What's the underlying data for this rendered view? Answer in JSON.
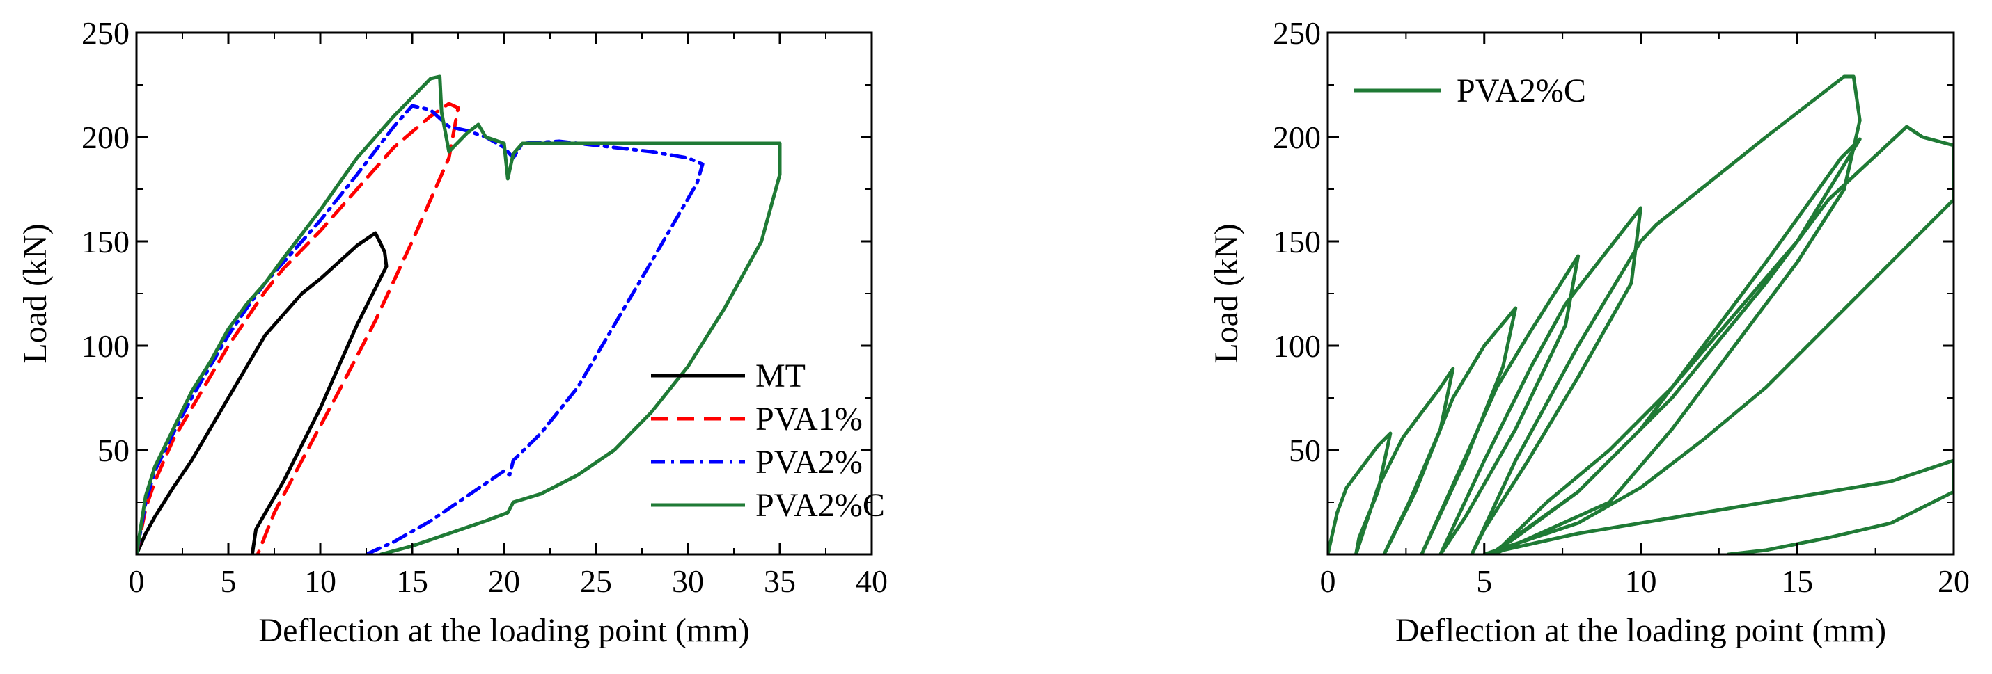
{
  "chart_data": [
    {
      "type": "line",
      "xlabel": "Deflection at the loading point (mm)",
      "ylabel": "Load (kN)",
      "xlim": [
        0,
        40
      ],
      "ylim": [
        0,
        250
      ],
      "x_ticks": [
        0,
        5,
        10,
        15,
        20,
        25,
        30,
        35,
        40
      ],
      "y_ticks": [
        50,
        100,
        150,
        200,
        250
      ],
      "legend_position": "bottom-right",
      "series": [
        {
          "name": "MT",
          "color": "#000000",
          "dash": "solid",
          "points": [
            [
              0,
              0
            ],
            [
              0.5,
              10
            ],
            [
              1,
              18
            ],
            [
              1.5,
              25
            ],
            [
              2,
              32
            ],
            [
              3,
              45
            ],
            [
              4,
              60
            ],
            [
              5,
              75
            ],
            [
              6,
              90
            ],
            [
              7,
              105
            ],
            [
              8,
              115
            ],
            [
              9,
              125
            ],
            [
              10,
              132
            ],
            [
              11,
              140
            ],
            [
              12,
              148
            ],
            [
              13,
              154
            ],
            [
              13.5,
              145
            ],
            [
              13.6,
              138
            ],
            [
              12,
              110
            ],
            [
              10,
              70
            ],
            [
              8,
              35
            ],
            [
              6.5,
              12
            ],
            [
              6.3,
              0
            ]
          ]
        },
        {
          "name": "PVA1%",
          "color": "#ff0000",
          "dash": "dashed",
          "points": [
            [
              0,
              0
            ],
            [
              0.5,
              22
            ],
            [
              1,
              35
            ],
            [
              2,
              55
            ],
            [
              3,
              70
            ],
            [
              4,
              85
            ],
            [
              5,
              100
            ],
            [
              6,
              113
            ],
            [
              7,
              126
            ],
            [
              8,
              137
            ],
            [
              10,
              155
            ],
            [
              12,
              175
            ],
            [
              14,
              195
            ],
            [
              16,
              210
            ],
            [
              17,
              216
            ],
            [
              17.5,
              214
            ],
            [
              17,
              190
            ],
            [
              15,
              150
            ],
            [
              13,
              112
            ],
            [
              11,
              78
            ],
            [
              9,
              45
            ],
            [
              7.5,
              20
            ],
            [
              6.6,
              0
            ]
          ]
        },
        {
          "name": "PVA2%",
          "color": "#0000ff",
          "dash": "dashdot",
          "points": [
            [
              0,
              0
            ],
            [
              0.5,
              25
            ],
            [
              1,
              40
            ],
            [
              2,
              58
            ],
            [
              3,
              75
            ],
            [
              4,
              90
            ],
            [
              5,
              105
            ],
            [
              6,
              118
            ],
            [
              7,
              130
            ],
            [
              8,
              140
            ],
            [
              10,
              160
            ],
            [
              12,
              182
            ],
            [
              14,
              205
            ],
            [
              15,
              215
            ],
            [
              16,
              213
            ],
            [
              17,
              205
            ],
            [
              18,
              203
            ],
            [
              19,
              200
            ],
            [
              20,
              195
            ],
            [
              20.5,
              190
            ],
            [
              21,
              197
            ],
            [
              23,
              198
            ],
            [
              25,
              196
            ],
            [
              28,
              193
            ],
            [
              30,
              190
            ],
            [
              30.8,
              187
            ],
            [
              30.5,
              178
            ],
            [
              28,
              140
            ],
            [
              26,
              110
            ],
            [
              24,
              80
            ],
            [
              22,
              58
            ],
            [
              20.5,
              45
            ],
            [
              20.3,
              38
            ],
            [
              20,
              40
            ],
            [
              18,
              28
            ],
            [
              16,
              16
            ],
            [
              14,
              6
            ],
            [
              12.5,
              0
            ]
          ]
        },
        {
          "name": "PVA2%C",
          "color": "#1f7a35",
          "dash": "solid",
          "points": [
            [
              0,
              0
            ],
            [
              0.5,
              28
            ],
            [
              1,
              42
            ],
            [
              2,
              60
            ],
            [
              3,
              78
            ],
            [
              4,
              92
            ],
            [
              5,
              108
            ],
            [
              6,
              120
            ],
            [
              7,
              130
            ],
            [
              8,
              142
            ],
            [
              10,
              165
            ],
            [
              12,
              190
            ],
            [
              14,
              210
            ],
            [
              16,
              228
            ],
            [
              16.5,
              229
            ],
            [
              16.6,
              212
            ],
            [
              17,
              193
            ],
            [
              18,
              202
            ],
            [
              18.6,
              206
            ],
            [
              19,
              200
            ],
            [
              20,
              197
            ],
            [
              20.2,
              180
            ],
            [
              20.5,
              192
            ],
            [
              21,
              197
            ],
            [
              25,
              197
            ],
            [
              30,
              197
            ],
            [
              33,
              197
            ],
            [
              35,
              197
            ],
            [
              35,
              182
            ],
            [
              34,
              150
            ],
            [
              32,
              118
            ],
            [
              30,
              90
            ],
            [
              28,
              68
            ],
            [
              26,
              50
            ],
            [
              24,
              38
            ],
            [
              22,
              29
            ],
            [
              20.5,
              25
            ],
            [
              20.2,
              20
            ],
            [
              19,
              16
            ],
            [
              17,
              10
            ],
            [
              15,
              4
            ],
            [
              13.3,
              0
            ]
          ]
        }
      ]
    },
    {
      "type": "line",
      "xlabel": "Deflection at the loading point (mm)",
      "ylabel": "Load (kN)",
      "xlim": [
        0,
        20
      ],
      "ylim": [
        0,
        250
      ],
      "x_ticks": [
        0,
        5,
        10,
        15,
        20
      ],
      "y_ticks": [
        50,
        100,
        150,
        200,
        250
      ],
      "legend_position": "top-left",
      "series": [
        {
          "name": "PVA2%C",
          "color": "#1f7a35",
          "dash": "solid",
          "points": [
            [
              0,
              0
            ],
            [
              0.3,
              20
            ],
            [
              0.6,
              32
            ],
            [
              1,
              40
            ],
            [
              1.6,
              52
            ],
            [
              2,
              58
            ],
            [
              1.6,
              30
            ],
            [
              1,
              8
            ],
            [
              0.9,
              0
            ],
            [
              1.6,
              32
            ],
            [
              2.4,
              56
            ],
            [
              3,
              68
            ],
            [
              3.6,
              80
            ],
            [
              4,
              89
            ],
            [
              3.6,
              60
            ],
            [
              2.6,
              25
            ],
            [
              1.8,
              0
            ],
            [
              2.8,
              30
            ],
            [
              3.6,
              60
            ],
            [
              4,
              75
            ],
            [
              5,
              100
            ],
            [
              6,
              118
            ],
            [
              5.6,
              90
            ],
            [
              4.4,
              45
            ],
            [
              3,
              0
            ],
            [
              4.2,
              40
            ],
            [
              5.4,
              80
            ],
            [
              6.4,
              105
            ],
            [
              8,
              143
            ],
            [
              7.6,
              110
            ],
            [
              6,
              60
            ],
            [
              4.4,
              18
            ],
            [
              3.6,
              0
            ],
            [
              5,
              45
            ],
            [
              6.5,
              90
            ],
            [
              7.6,
              120
            ],
            [
              10,
              166
            ],
            [
              9.7,
              130
            ],
            [
              8,
              85
            ],
            [
              6.4,
              45
            ],
            [
              5,
              12
            ],
            [
              4.6,
              0
            ],
            [
              6,
              45
            ],
            [
              8,
              100
            ],
            [
              9,
              125
            ],
            [
              10,
              150
            ],
            [
              10.5,
              158
            ],
            [
              12,
              176
            ],
            [
              14,
              200
            ],
            [
              16.5,
              229
            ],
            [
              16.8,
              229
            ],
            [
              17,
              208
            ],
            [
              16.5,
              175
            ],
            [
              15,
              140
            ],
            [
              13,
              100
            ],
            [
              11,
              60
            ],
            [
              9,
              25
            ],
            [
              5.3,
              0
            ],
            [
              7,
              25
            ],
            [
              9,
              50
            ],
            [
              11,
              80
            ],
            [
              13,
              115
            ],
            [
              15,
              150
            ],
            [
              17,
              199
            ],
            [
              16.4,
              190
            ],
            [
              14,
              140
            ],
            [
              12,
              100
            ],
            [
              10,
              60
            ],
            [
              8,
              30
            ],
            [
              6,
              8
            ],
            [
              5.2,
              0
            ],
            [
              8,
              30
            ],
            [
              11,
              75
            ],
            [
              14,
              130
            ],
            [
              16,
              170
            ],
            [
              18.5,
              205
            ],
            [
              19,
              200
            ],
            [
              20,
              196
            ],
            [
              20,
              180
            ],
            [
              20,
              170
            ],
            [
              18,
              140
            ],
            [
              16,
              110
            ],
            [
              14,
              80
            ],
            [
              12,
              55
            ],
            [
              10,
              32
            ],
            [
              8,
              15
            ],
            [
              6,
              5
            ],
            [
              5,
              0
            ],
            [
              8,
              10
            ],
            [
              12,
              20
            ],
            [
              16,
              30
            ],
            [
              18,
              35
            ],
            [
              20,
              45
            ],
            [
              20,
              30
            ],
            [
              18,
              15
            ],
            [
              16,
              8
            ],
            [
              14,
              2
            ],
            [
              12.8,
              0
            ]
          ]
        }
      ]
    }
  ]
}
